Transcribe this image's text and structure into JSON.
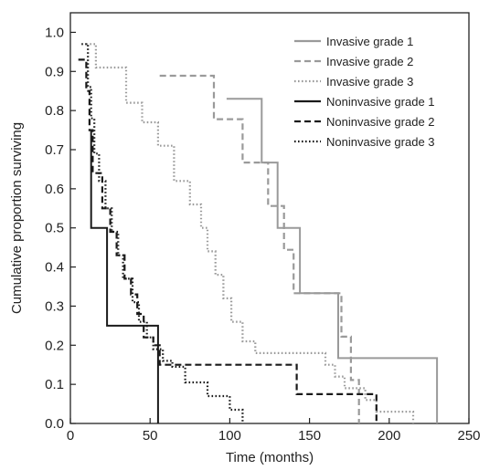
{
  "chart_data": {
    "type": "line",
    "subtype": "step (Kaplan-Meier survival curves)",
    "xlabel": "Time (months)",
    "ylabel": "Cumulative proportion surviving",
    "xlim": [
      0,
      250
    ],
    "ylim": [
      0,
      1.05
    ],
    "xticks": [
      0,
      50,
      100,
      150,
      200,
      250
    ],
    "yticks": [
      0.0,
      0.1,
      0.2,
      0.3,
      0.4,
      0.5,
      0.6,
      0.7,
      0.8,
      0.9,
      1.0
    ],
    "grid": false,
    "legend_position": "top-right",
    "series": [
      {
        "name": "Invasive grade 1",
        "color": "#9a9a9a",
        "style": "solid",
        "points": [
          [
            98,
            0.83
          ],
          [
            120,
            0.83
          ],
          [
            120,
            0.667
          ],
          [
            130,
            0.667
          ],
          [
            130,
            0.5
          ],
          [
            144,
            0.5
          ],
          [
            144,
            0.333
          ],
          [
            168,
            0.333
          ],
          [
            168,
            0.167
          ],
          [
            230,
            0.167
          ],
          [
            230,
            0.0
          ]
        ]
      },
      {
        "name": "Invasive grade 2",
        "color": "#9a9a9a",
        "style": "dashed",
        "points": [
          [
            56,
            0.889
          ],
          [
            90,
            0.889
          ],
          [
            90,
            0.778
          ],
          [
            108,
            0.778
          ],
          [
            108,
            0.667
          ],
          [
            124,
            0.667
          ],
          [
            124,
            0.556
          ],
          [
            134,
            0.556
          ],
          [
            134,
            0.444
          ],
          [
            140,
            0.444
          ],
          [
            140,
            0.333
          ],
          [
            170,
            0.333
          ],
          [
            170,
            0.222
          ],
          [
            176,
            0.222
          ],
          [
            176,
            0.111
          ],
          [
            181,
            0.111
          ],
          [
            181,
            0.0
          ]
        ]
      },
      {
        "name": "Invasive grade 3",
        "color": "#9a9a9a",
        "style": "dotted",
        "points": [
          [
            10,
            0.97
          ],
          [
            16,
            0.97
          ],
          [
            16,
            0.91
          ],
          [
            35,
            0.91
          ],
          [
            35,
            0.82
          ],
          [
            45,
            0.82
          ],
          [
            45,
            0.77
          ],
          [
            55,
            0.77
          ],
          [
            55,
            0.71
          ],
          [
            65,
            0.71
          ],
          [
            65,
            0.62
          ],
          [
            75,
            0.62
          ],
          [
            75,
            0.56
          ],
          [
            82,
            0.56
          ],
          [
            82,
            0.5
          ],
          [
            86,
            0.5
          ],
          [
            86,
            0.44
          ],
          [
            91,
            0.44
          ],
          [
            91,
            0.38
          ],
          [
            96,
            0.38
          ],
          [
            96,
            0.32
          ],
          [
            101,
            0.32
          ],
          [
            101,
            0.26
          ],
          [
            108,
            0.26
          ],
          [
            108,
            0.21
          ],
          [
            116,
            0.21
          ],
          [
            116,
            0.18
          ],
          [
            160,
            0.18
          ],
          [
            160,
            0.15
          ],
          [
            166,
            0.15
          ],
          [
            166,
            0.12
          ],
          [
            172,
            0.12
          ],
          [
            172,
            0.09
          ],
          [
            185,
            0.09
          ],
          [
            185,
            0.06
          ],
          [
            192,
            0.06
          ],
          [
            192,
            0.03
          ],
          [
            215,
            0.03
          ],
          [
            215,
            0.0
          ]
        ]
      },
      {
        "name": "Noninvasive grade 1",
        "color": "#1a1a1a",
        "style": "solid",
        "points": [
          [
            13,
            0.75
          ],
          [
            13,
            0.5
          ],
          [
            23,
            0.5
          ],
          [
            23,
            0.25
          ],
          [
            55,
            0.25
          ],
          [
            55,
            0.0
          ]
        ]
      },
      {
        "name": "Noninvasive grade 2",
        "color": "#1a1a1a",
        "style": "dashed",
        "points": [
          [
            5,
            0.93
          ],
          [
            10,
            0.93
          ],
          [
            10,
            0.85
          ],
          [
            12,
            0.85
          ],
          [
            12,
            0.75
          ],
          [
            14,
            0.75
          ],
          [
            14,
            0.64
          ],
          [
            20,
            0.64
          ],
          [
            20,
            0.55
          ],
          [
            25,
            0.55
          ],
          [
            25,
            0.49
          ],
          [
            29,
            0.49
          ],
          [
            29,
            0.43
          ],
          [
            34,
            0.43
          ],
          [
            34,
            0.37
          ],
          [
            38,
            0.37
          ],
          [
            38,
            0.33
          ],
          [
            42,
            0.33
          ],
          [
            42,
            0.28
          ],
          [
            46,
            0.28
          ],
          [
            46,
            0.22
          ],
          [
            52,
            0.22
          ],
          [
            52,
            0.2
          ],
          [
            56,
            0.2
          ],
          [
            56,
            0.15
          ],
          [
            142,
            0.15
          ],
          [
            142,
            0.075
          ],
          [
            192,
            0.075
          ],
          [
            192,
            0.0
          ]
        ]
      },
      {
        "name": "Noninvasive grade 3",
        "color": "#1a1a1a",
        "style": "dotted",
        "points": [
          [
            7,
            0.97
          ],
          [
            11,
            0.97
          ],
          [
            11,
            0.86
          ],
          [
            13,
            0.86
          ],
          [
            13,
            0.78
          ],
          [
            15,
            0.78
          ],
          [
            15,
            0.69
          ],
          [
            18,
            0.69
          ],
          [
            18,
            0.62
          ],
          [
            22,
            0.62
          ],
          [
            22,
            0.55
          ],
          [
            26,
            0.55
          ],
          [
            26,
            0.49
          ],
          [
            30,
            0.49
          ],
          [
            30,
            0.43
          ],
          [
            33,
            0.43
          ],
          [
            33,
            0.37
          ],
          [
            39,
            0.37
          ],
          [
            39,
            0.31
          ],
          [
            43,
            0.31
          ],
          [
            43,
            0.26
          ],
          [
            48,
            0.26
          ],
          [
            48,
            0.22
          ],
          [
            52,
            0.22
          ],
          [
            52,
            0.19
          ],
          [
            58,
            0.19
          ],
          [
            58,
            0.16
          ],
          [
            64,
            0.16
          ],
          [
            64,
            0.145
          ],
          [
            72,
            0.145
          ],
          [
            72,
            0.105
          ],
          [
            86,
            0.105
          ],
          [
            86,
            0.07
          ],
          [
            100,
            0.07
          ],
          [
            100,
            0.035
          ],
          [
            108,
            0.035
          ],
          [
            108,
            0.0
          ]
        ]
      }
    ]
  }
}
